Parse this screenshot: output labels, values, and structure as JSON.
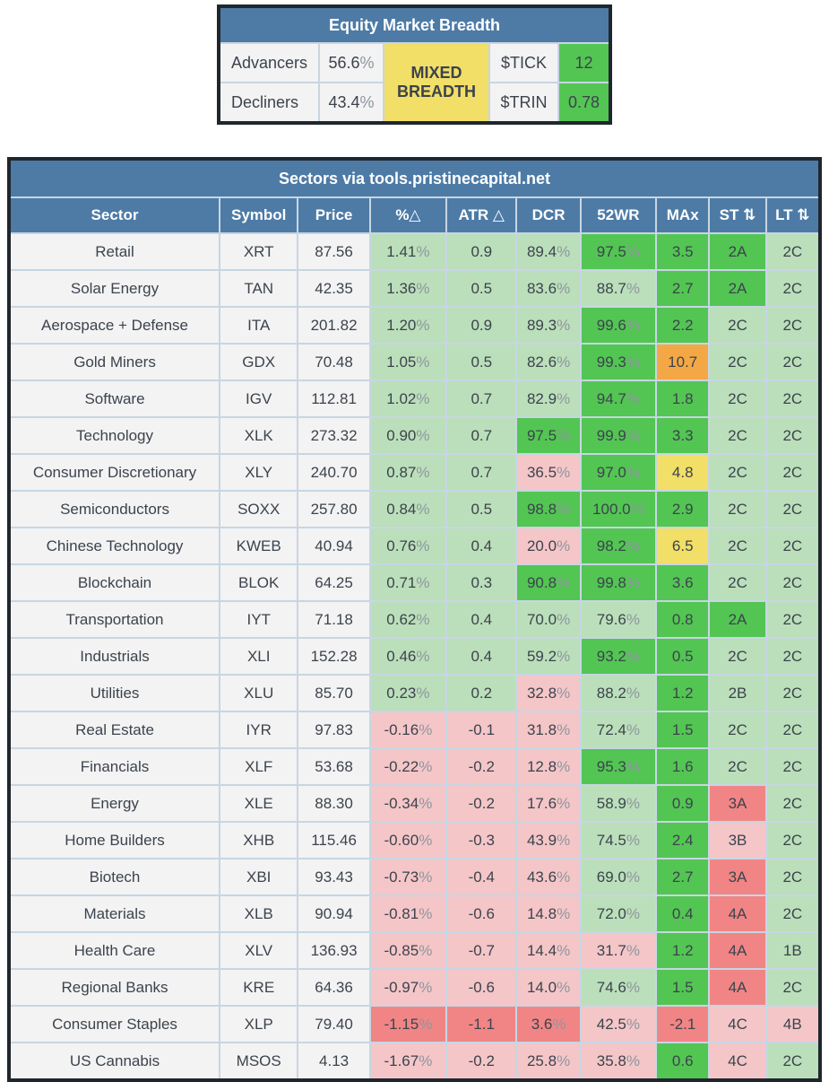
{
  "breadth": {
    "title": "Equity Market Breadth",
    "rows": [
      {
        "label": "Advancers",
        "value": "56.6%"
      },
      {
        "label": "Decliners",
        "value": "43.4%"
      }
    ],
    "status": "MIXED BREADTH",
    "tick_label": "$TICK",
    "tick_value": "12",
    "trin_label": "$TRIN",
    "trin_value": "0.78"
  },
  "sectors": {
    "title": "Sectors via tools.pristinecapital.net",
    "columns": [
      "Sector",
      "Symbol",
      "Price",
      "%△",
      "ATR △",
      "DCR",
      "52WR",
      "MAx",
      "ST ⇅",
      "LT ⇅"
    ],
    "rows": [
      {
        "sector": "Retail",
        "symbol": "XRT",
        "price": "87.56",
        "cells": [
          [
            "1.41%",
            "g"
          ],
          [
            "0.9",
            "g"
          ],
          [
            "89.4%",
            "g"
          ],
          [
            "97.5%",
            "G"
          ],
          [
            "3.5",
            "G"
          ],
          [
            "2A",
            "G"
          ],
          [
            "2C",
            "g"
          ]
        ]
      },
      {
        "sector": "Solar Energy",
        "symbol": "TAN",
        "price": "42.35",
        "cells": [
          [
            "1.36%",
            "g"
          ],
          [
            "0.5",
            "g"
          ],
          [
            "83.6%",
            "g"
          ],
          [
            "88.7%",
            "g"
          ],
          [
            "2.7",
            "G"
          ],
          [
            "2A",
            "G"
          ],
          [
            "2C",
            "g"
          ]
        ]
      },
      {
        "sector": "Aerospace + Defense",
        "symbol": "ITA",
        "price": "201.82",
        "cells": [
          [
            "1.20%",
            "g"
          ],
          [
            "0.9",
            "g"
          ],
          [
            "89.3%",
            "g"
          ],
          [
            "99.6%",
            "G"
          ],
          [
            "2.2",
            "G"
          ],
          [
            "2C",
            "g"
          ],
          [
            "2C",
            "g"
          ]
        ]
      },
      {
        "sector": "Gold Miners",
        "symbol": "GDX",
        "price": "70.48",
        "cells": [
          [
            "1.05%",
            "g"
          ],
          [
            "0.5",
            "g"
          ],
          [
            "82.6%",
            "g"
          ],
          [
            "99.3%",
            "G"
          ],
          [
            "10.7",
            "O"
          ],
          [
            "2C",
            "g"
          ],
          [
            "2C",
            "g"
          ]
        ]
      },
      {
        "sector": "Software",
        "symbol": "IGV",
        "price": "112.81",
        "cells": [
          [
            "1.02%",
            "g"
          ],
          [
            "0.7",
            "g"
          ],
          [
            "82.9%",
            "g"
          ],
          [
            "94.7%",
            "G"
          ],
          [
            "1.8",
            "G"
          ],
          [
            "2C",
            "g"
          ],
          [
            "2C",
            "g"
          ]
        ]
      },
      {
        "sector": "Technology",
        "symbol": "XLK",
        "price": "273.32",
        "cells": [
          [
            "0.90%",
            "g"
          ],
          [
            "0.7",
            "g"
          ],
          [
            "97.5%",
            "G"
          ],
          [
            "99.9%",
            "G"
          ],
          [
            "3.3",
            "G"
          ],
          [
            "2C",
            "g"
          ],
          [
            "2C",
            "g"
          ]
        ]
      },
      {
        "sector": "Consumer Discretionary",
        "symbol": "XLY",
        "price": "240.70",
        "cells": [
          [
            "0.87%",
            "g"
          ],
          [
            "0.7",
            "g"
          ],
          [
            "36.5%",
            "r"
          ],
          [
            "97.0%",
            "G"
          ],
          [
            "4.8",
            "Y"
          ],
          [
            "2C",
            "g"
          ],
          [
            "2C",
            "g"
          ]
        ]
      },
      {
        "sector": "Semiconductors",
        "symbol": "SOXX",
        "price": "257.80",
        "cells": [
          [
            "0.84%",
            "g"
          ],
          [
            "0.5",
            "g"
          ],
          [
            "98.8%",
            "G"
          ],
          [
            "100.0%",
            "G"
          ],
          [
            "2.9",
            "G"
          ],
          [
            "2C",
            "g"
          ],
          [
            "2C",
            "g"
          ]
        ]
      },
      {
        "sector": "Chinese Technology",
        "symbol": "KWEB",
        "price": "40.94",
        "cells": [
          [
            "0.76%",
            "g"
          ],
          [
            "0.4",
            "g"
          ],
          [
            "20.0%",
            "r"
          ],
          [
            "98.2%",
            "G"
          ],
          [
            "6.5",
            "Y"
          ],
          [
            "2C",
            "g"
          ],
          [
            "2C",
            "g"
          ]
        ]
      },
      {
        "sector": "Blockchain",
        "symbol": "BLOK",
        "price": "64.25",
        "cells": [
          [
            "0.71%",
            "g"
          ],
          [
            "0.3",
            "g"
          ],
          [
            "90.8%",
            "G"
          ],
          [
            "99.8%",
            "G"
          ],
          [
            "3.6",
            "G"
          ],
          [
            "2C",
            "g"
          ],
          [
            "2C",
            "g"
          ]
        ]
      },
      {
        "sector": "Transportation",
        "symbol": "IYT",
        "price": "71.18",
        "cells": [
          [
            "0.62%",
            "g"
          ],
          [
            "0.4",
            "g"
          ],
          [
            "70.0%",
            "g"
          ],
          [
            "79.6%",
            "g"
          ],
          [
            "0.8",
            "G"
          ],
          [
            "2A",
            "G"
          ],
          [
            "2C",
            "g"
          ]
        ]
      },
      {
        "sector": "Industrials",
        "symbol": "XLI",
        "price": "152.28",
        "cells": [
          [
            "0.46%",
            "g"
          ],
          [
            "0.4",
            "g"
          ],
          [
            "59.2%",
            "g"
          ],
          [
            "93.2%",
            "G"
          ],
          [
            "0.5",
            "G"
          ],
          [
            "2C",
            "g"
          ],
          [
            "2C",
            "g"
          ]
        ]
      },
      {
        "sector": "Utilities",
        "symbol": "XLU",
        "price": "85.70",
        "cells": [
          [
            "0.23%",
            "g"
          ],
          [
            "0.2",
            "g"
          ],
          [
            "32.8%",
            "r"
          ],
          [
            "88.2%",
            "g"
          ],
          [
            "1.2",
            "G"
          ],
          [
            "2B",
            "g"
          ],
          [
            "2C",
            "g"
          ]
        ]
      },
      {
        "sector": "Real Estate",
        "symbol": "IYR",
        "price": "97.83",
        "cells": [
          [
            "-0.16%",
            "r"
          ],
          [
            "-0.1",
            "r"
          ],
          [
            "31.8%",
            "r"
          ],
          [
            "72.4%",
            "g"
          ],
          [
            "1.5",
            "G"
          ],
          [
            "2C",
            "g"
          ],
          [
            "2C",
            "g"
          ]
        ]
      },
      {
        "sector": "Financials",
        "symbol": "XLF",
        "price": "53.68",
        "cells": [
          [
            "-0.22%",
            "r"
          ],
          [
            "-0.2",
            "r"
          ],
          [
            "12.8%",
            "r"
          ],
          [
            "95.3%",
            "G"
          ],
          [
            "1.6",
            "G"
          ],
          [
            "2C",
            "g"
          ],
          [
            "2C",
            "g"
          ]
        ]
      },
      {
        "sector": "Energy",
        "symbol": "XLE",
        "price": "88.30",
        "cells": [
          [
            "-0.34%",
            "r"
          ],
          [
            "-0.2",
            "r"
          ],
          [
            "17.6%",
            "r"
          ],
          [
            "58.9%",
            "g"
          ],
          [
            "0.9",
            "G"
          ],
          [
            "3A",
            "R"
          ],
          [
            "2C",
            "g"
          ]
        ]
      },
      {
        "sector": "Home Builders",
        "symbol": "XHB",
        "price": "115.46",
        "cells": [
          [
            "-0.60%",
            "r"
          ],
          [
            "-0.3",
            "r"
          ],
          [
            "43.9%",
            "r"
          ],
          [
            "74.5%",
            "g"
          ],
          [
            "2.4",
            "G"
          ],
          [
            "3B",
            "r"
          ],
          [
            "2C",
            "g"
          ]
        ]
      },
      {
        "sector": "Biotech",
        "symbol": "XBI",
        "price": "93.43",
        "cells": [
          [
            "-0.73%",
            "r"
          ],
          [
            "-0.4",
            "r"
          ],
          [
            "43.6%",
            "r"
          ],
          [
            "69.0%",
            "g"
          ],
          [
            "2.7",
            "G"
          ],
          [
            "3A",
            "R"
          ],
          [
            "2C",
            "g"
          ]
        ]
      },
      {
        "sector": "Materials",
        "symbol": "XLB",
        "price": "90.94",
        "cells": [
          [
            "-0.81%",
            "r"
          ],
          [
            "-0.6",
            "r"
          ],
          [
            "14.8%",
            "r"
          ],
          [
            "72.0%",
            "g"
          ],
          [
            "0.4",
            "G"
          ],
          [
            "4A",
            "R"
          ],
          [
            "2C",
            "g"
          ]
        ]
      },
      {
        "sector": "Health Care",
        "symbol": "XLV",
        "price": "136.93",
        "cells": [
          [
            "-0.85%",
            "r"
          ],
          [
            "-0.7",
            "r"
          ],
          [
            "14.4%",
            "r"
          ],
          [
            "31.7%",
            "r"
          ],
          [
            "1.2",
            "G"
          ],
          [
            "4A",
            "R"
          ],
          [
            "1B",
            "g"
          ]
        ]
      },
      {
        "sector": "Regional Banks",
        "symbol": "KRE",
        "price": "64.36",
        "cells": [
          [
            "-0.97%",
            "r"
          ],
          [
            "-0.6",
            "r"
          ],
          [
            "14.0%",
            "r"
          ],
          [
            "74.6%",
            "g"
          ],
          [
            "1.5",
            "G"
          ],
          [
            "4A",
            "R"
          ],
          [
            "2C",
            "g"
          ]
        ]
      },
      {
        "sector": "Consumer Staples",
        "symbol": "XLP",
        "price": "79.40",
        "cells": [
          [
            "-1.15%",
            "R"
          ],
          [
            "-1.1",
            "R"
          ],
          [
            "3.6%",
            "R"
          ],
          [
            "42.5%",
            "r"
          ],
          [
            "-2.1",
            "R"
          ],
          [
            "4C",
            "r"
          ],
          [
            "4B",
            "r"
          ]
        ]
      },
      {
        "sector": "US Cannabis",
        "symbol": "MSOS",
        "price": "4.13",
        "cells": [
          [
            "-1.67%",
            "r"
          ],
          [
            "-0.2",
            "r"
          ],
          [
            "25.8%",
            "r"
          ],
          [
            "35.8%",
            "r"
          ],
          [
            "0.6",
            "G"
          ],
          [
            "4C",
            "r"
          ],
          [
            "2C",
            "g"
          ]
        ]
      }
    ]
  },
  "colors": {
    "header_blue": "#4d7ba6",
    "bright_green": "#53c553",
    "light_green": "#bbdfba",
    "salmon_red": "#f18585",
    "light_pink": "#f4c6c8",
    "yellow": "#f1df67",
    "orange": "#f4a845",
    "row_background": "#f3f3f3",
    "outer_border": "#20262e",
    "cell_border": "#c7d6e3",
    "text": "#3c434d"
  }
}
